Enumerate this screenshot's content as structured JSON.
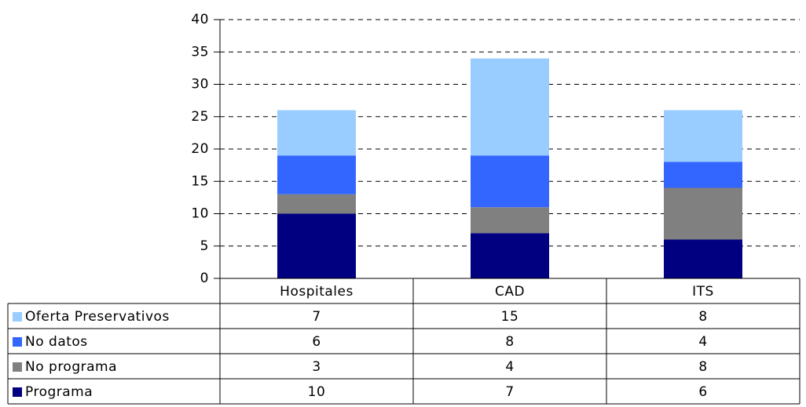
{
  "chart_data": {
    "type": "stacked_bar",
    "categories": [
      "Hospitales",
      "CAD",
      "ITS"
    ],
    "series": [
      {
        "name": "Oferta Preservativos",
        "color": "#99ccff",
        "values": [
          7,
          15,
          8
        ]
      },
      {
        "name": "No datos",
        "color": "#3366ff",
        "values": [
          6,
          8,
          4
        ]
      },
      {
        "name": "No programa",
        "color": "#808080",
        "values": [
          3,
          4,
          8
        ]
      },
      {
        "name": "Programa",
        "color": "#000080",
        "values": [
          10,
          7,
          6
        ]
      }
    ],
    "ylim": [
      0,
      40
    ],
    "yticks": [
      0,
      5,
      10,
      15,
      20,
      25,
      30,
      35,
      40
    ],
    "grid": true
  }
}
